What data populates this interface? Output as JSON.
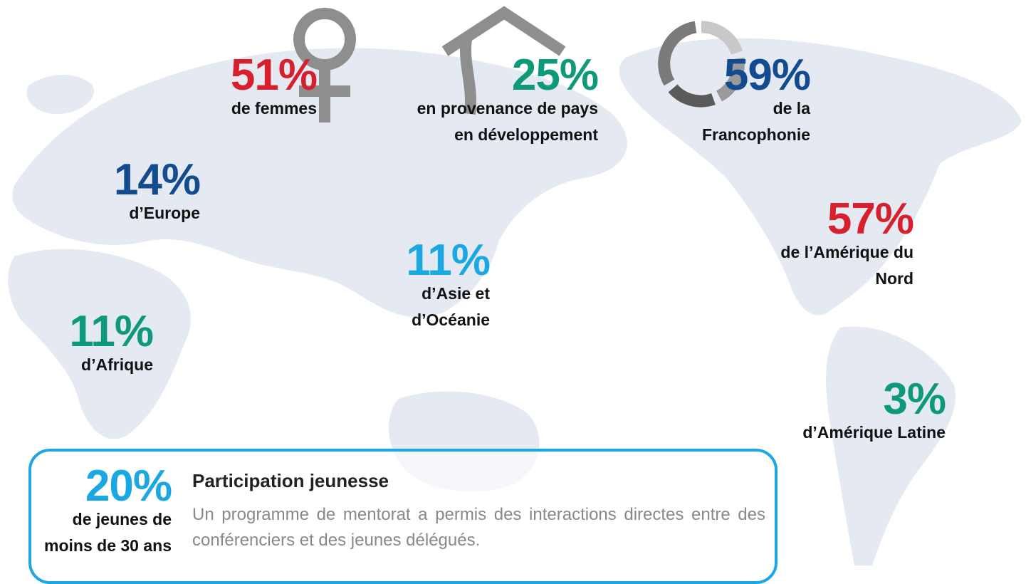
{
  "stats": [
    {
      "value": "51%",
      "label": [
        "de femmes"
      ]
    },
    {
      "value": "25%",
      "label": [
        "en provenance de pays",
        "en développement"
      ]
    },
    {
      "value": "59%",
      "label": [
        "de la",
        "Francophonie"
      ]
    },
    {
      "value": "14%",
      "label": [
        "d’Europe"
      ]
    },
    {
      "value": "57%",
      "label": [
        "de l’Amérique du",
        "Nord"
      ]
    },
    {
      "value": "11%",
      "label": [
        "d’Asie et",
        "d’Océanie"
      ]
    },
    {
      "value": "11%",
      "label": [
        "d’Afrique"
      ]
    },
    {
      "value": "3%",
      "label": [
        "d’Amérique Latine"
      ]
    }
  ],
  "youth": {
    "value": "20%",
    "label": [
      "de jeunes de",
      "moins de 30 ans"
    ],
    "title": "Participation jeunesse",
    "text": "Un programme de mentorat a permis des interactions directes entre des conférenciers et des jeunes délégués."
  }
}
